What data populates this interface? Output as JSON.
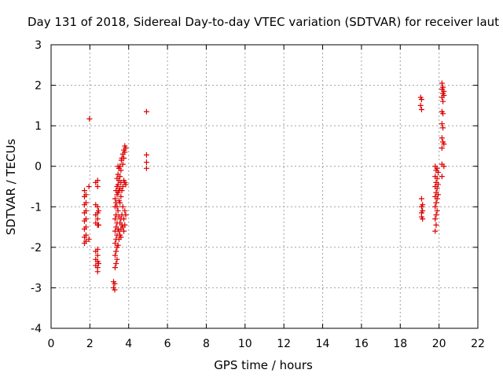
{
  "chart_data": {
    "type": "scatter",
    "title": "Day 131 of 2018, Sidereal Day-to-day VTEC variation (SDTVAR) for receiver laut",
    "xlabel": "GPS time / hours",
    "ylabel": "SDTVAR / TECUs",
    "xlim": [
      0,
      22
    ],
    "ylim": [
      -4,
      3
    ],
    "xticks": [
      0,
      2,
      4,
      6,
      8,
      10,
      12,
      14,
      16,
      18,
      20,
      22
    ],
    "yticks": [
      -4,
      -3,
      -2,
      -1,
      0,
      1,
      2,
      3
    ],
    "xtick_labels": [
      "0",
      "2",
      "4",
      "6",
      "8",
      "10",
      "12",
      "14",
      "16",
      "18",
      "20",
      "22"
    ],
    "ytick_labels": [
      "-4",
      "-3",
      "-2",
      "-1",
      "0",
      "1",
      "2",
      "3"
    ],
    "grid": true,
    "marker": "+",
    "marker_color": "#dd0000",
    "series": [
      {
        "name": "SDTVAR",
        "points": [
          [
            1.72,
            -0.6
          ],
          [
            1.72,
            -0.75
          ],
          [
            1.72,
            -0.95
          ],
          [
            1.72,
            -1.15
          ],
          [
            1.72,
            -1.35
          ],
          [
            1.72,
            -1.55
          ],
          [
            1.72,
            -1.75
          ],
          [
            1.72,
            -1.9
          ],
          [
            1.8,
            -0.7
          ],
          [
            1.8,
            -0.9
          ],
          [
            1.8,
            -1.1
          ],
          [
            1.8,
            -1.3
          ],
          [
            1.8,
            -1.5
          ],
          [
            1.8,
            -1.7
          ],
          [
            1.8,
            -1.85
          ],
          [
            1.95,
            -0.5
          ],
          [
            1.95,
            -1.8
          ],
          [
            1.98,
            1.17
          ],
          [
            2.3,
            -0.4
          ],
          [
            2.3,
            -0.95
          ],
          [
            2.3,
            -1.2
          ],
          [
            2.3,
            -1.4
          ],
          [
            2.3,
            -2.1
          ],
          [
            2.3,
            -2.3
          ],
          [
            2.3,
            -2.45
          ],
          [
            2.4,
            -0.35
          ],
          [
            2.4,
            -0.5
          ],
          [
            2.4,
            -1.0
          ],
          [
            2.4,
            -1.15
          ],
          [
            2.4,
            -1.3
          ],
          [
            2.4,
            -1.45
          ],
          [
            2.4,
            -2.05
          ],
          [
            2.4,
            -2.2
          ],
          [
            2.4,
            -2.35
          ],
          [
            2.4,
            -2.5
          ],
          [
            2.4,
            -2.6
          ],
          [
            2.45,
            -1.1
          ],
          [
            2.45,
            -1.45
          ],
          [
            2.45,
            -2.4
          ],
          [
            3.22,
            -2.85
          ],
          [
            3.22,
            -3.0
          ],
          [
            3.28,
            -2.9
          ],
          [
            3.28,
            -3.05
          ],
          [
            3.3,
            -0.8
          ],
          [
            3.3,
            -1.0
          ],
          [
            3.3,
            -1.3
          ],
          [
            3.3,
            -1.6
          ],
          [
            3.3,
            -1.9
          ],
          [
            3.3,
            -2.2
          ],
          [
            3.3,
            -2.5
          ],
          [
            3.35,
            -0.6
          ],
          [
            3.35,
            -0.9
          ],
          [
            3.35,
            -1.2
          ],
          [
            3.35,
            -1.5
          ],
          [
            3.35,
            -1.8
          ],
          [
            3.35,
            -2.1
          ],
          [
            3.35,
            -2.4
          ],
          [
            3.4,
            -0.3
          ],
          [
            3.4,
            -0.5
          ],
          [
            3.4,
            -0.7
          ],
          [
            3.4,
            -1.0
          ],
          [
            3.4,
            -1.4
          ],
          [
            3.4,
            -1.7
          ],
          [
            3.4,
            -2.0
          ],
          [
            3.4,
            -2.3
          ],
          [
            3.45,
            0.0
          ],
          [
            3.45,
            -0.2
          ],
          [
            3.45,
            -0.45
          ],
          [
            3.45,
            -0.65
          ],
          [
            3.45,
            -1.1
          ],
          [
            3.45,
            -1.55
          ],
          [
            3.45,
            -1.95
          ],
          [
            3.5,
            -0.05
          ],
          [
            3.5,
            -0.35
          ],
          [
            3.5,
            -0.6
          ],
          [
            3.5,
            -0.85
          ],
          [
            3.5,
            -1.25
          ],
          [
            3.5,
            -1.6
          ],
          [
            3.5,
            -1.8
          ],
          [
            3.55,
            0.0
          ],
          [
            3.55,
            -0.25
          ],
          [
            3.55,
            -0.55
          ],
          [
            3.55,
            -0.9
          ],
          [
            3.55,
            -1.4
          ],
          [
            3.55,
            -1.7
          ],
          [
            3.6,
            -0.1
          ],
          [
            3.6,
            -0.4
          ],
          [
            3.6,
            -0.75
          ],
          [
            3.6,
            -1.3
          ],
          [
            3.6,
            -1.55
          ],
          [
            3.6,
            -1.75
          ],
          [
            3.62,
            0.15
          ],
          [
            3.65,
            0.2
          ],
          [
            3.65,
            -0.6
          ],
          [
            3.65,
            -1.2
          ],
          [
            3.65,
            -1.45
          ],
          [
            3.7,
            0.3
          ],
          [
            3.7,
            0.05
          ],
          [
            3.7,
            -0.5
          ],
          [
            3.7,
            -1.0
          ],
          [
            3.7,
            -1.5
          ],
          [
            3.75,
            0.4
          ],
          [
            3.75,
            0.2
          ],
          [
            3.75,
            -0.35
          ],
          [
            3.75,
            -1.3
          ],
          [
            3.75,
            -1.6
          ],
          [
            3.8,
            0.5
          ],
          [
            3.8,
            0.35
          ],
          [
            3.8,
            -0.4
          ],
          [
            3.8,
            -1.1
          ],
          [
            3.8,
            -1.45
          ],
          [
            3.85,
            0.45
          ],
          [
            3.85,
            -0.45
          ],
          [
            3.85,
            -1.2
          ],
          [
            4.92,
            1.35
          ],
          [
            4.92,
            0.28
          ],
          [
            4.92,
            0.1
          ],
          [
            4.92,
            -0.05
          ],
          [
            19.05,
            1.7
          ],
          [
            19.05,
            1.5
          ],
          [
            19.1,
            1.65
          ],
          [
            19.1,
            1.4
          ],
          [
            19.1,
            -0.8
          ],
          [
            19.1,
            -1.0
          ],
          [
            19.1,
            -1.15
          ],
          [
            19.1,
            -1.25
          ],
          [
            19.15,
            -0.95
          ],
          [
            19.15,
            -1.1
          ],
          [
            19.15,
            -1.3
          ],
          [
            19.8,
            -0.0
          ],
          [
            19.8,
            -0.25
          ],
          [
            19.8,
            -0.5
          ],
          [
            19.8,
            -0.75
          ],
          [
            19.8,
            -1.0
          ],
          [
            19.8,
            -1.3
          ],
          [
            19.8,
            -1.6
          ],
          [
            19.85,
            -0.1
          ],
          [
            19.85,
            -0.4
          ],
          [
            19.85,
            -0.65
          ],
          [
            19.85,
            -0.9
          ],
          [
            19.85,
            -1.2
          ],
          [
            19.85,
            -1.45
          ],
          [
            19.9,
            -0.05
          ],
          [
            19.9,
            -0.3
          ],
          [
            19.9,
            -0.55
          ],
          [
            19.9,
            -0.8
          ],
          [
            19.9,
            -1.1
          ],
          [
            19.95,
            -0.15
          ],
          [
            19.95,
            -0.45
          ],
          [
            19.95,
            -0.7
          ],
          [
            20.15,
            2.05
          ],
          [
            20.15,
            1.9
          ],
          [
            20.15,
            1.7
          ],
          [
            20.15,
            1.35
          ],
          [
            20.15,
            1.05
          ],
          [
            20.15,
            0.7
          ],
          [
            20.15,
            0.45
          ],
          [
            20.15,
            0.05
          ],
          [
            20.15,
            -0.25
          ],
          [
            20.2,
            1.95
          ],
          [
            20.2,
            1.8
          ],
          [
            20.2,
            1.6
          ],
          [
            20.2,
            1.3
          ],
          [
            20.2,
            0.95
          ],
          [
            20.2,
            0.6
          ],
          [
            20.25,
            1.85
          ],
          [
            20.25,
            1.75
          ],
          [
            20.25,
            0.55
          ],
          [
            20.25,
            0.0
          ]
        ]
      }
    ]
  }
}
